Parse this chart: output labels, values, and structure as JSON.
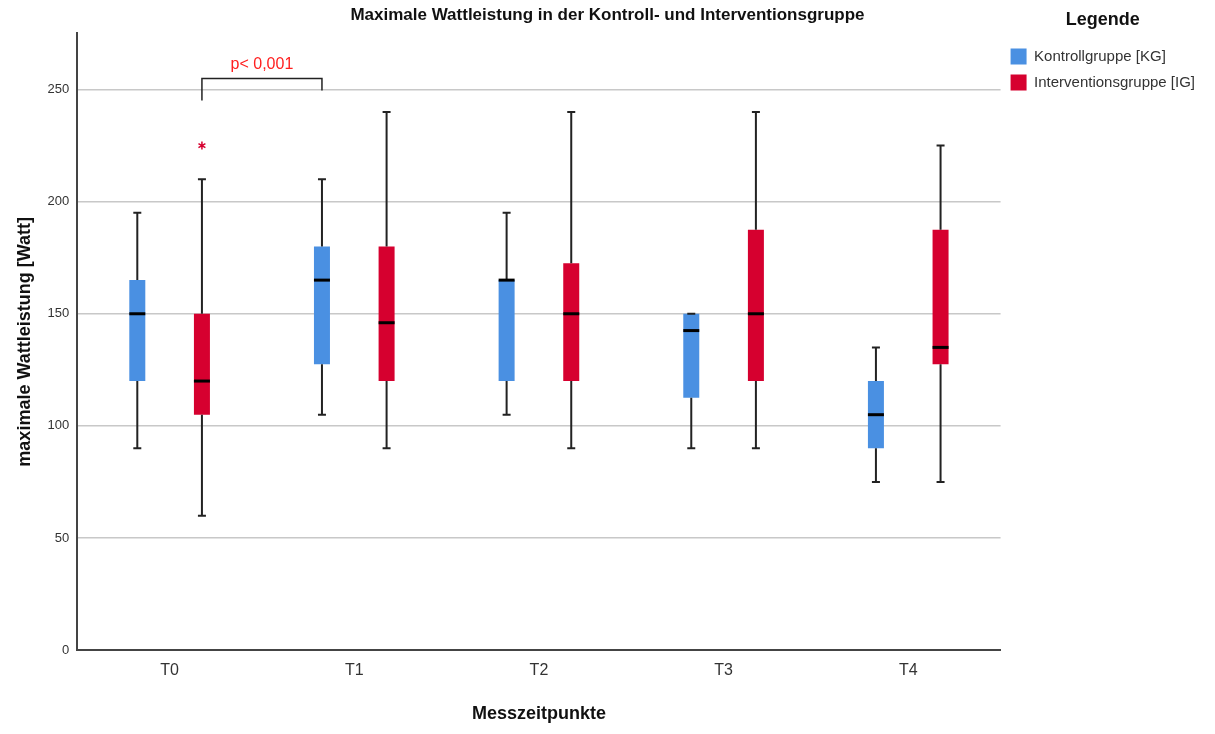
{
  "chart_data": {
    "type": "box",
    "title": "Maximale Wattleistung in der Kontroll- und Interventionsgruppe",
    "xlabel": "Messzeitpunkte",
    "ylabel": "maximale Wattleistung [Watt]",
    "legend_title": "Legende",
    "legend": "top right",
    "grid": "y",
    "categories": [
      "T0",
      "T1",
      "T2",
      "T3",
      "T4"
    ],
    "ylim": [
      0,
      275
    ],
    "yticks": [
      0,
      50,
      100,
      150,
      200,
      250
    ],
    "annotations": [
      "p< 0,001"
    ],
    "series": [
      {
        "name": "Kontrollgruppe [KG]",
        "color": "#4a90e2",
        "boxes": [
          {
            "low": 90,
            "q1": 120,
            "median": 150,
            "q3": 165,
            "high": 195
          },
          {
            "low": 105,
            "q1": 127.5,
            "median": 165,
            "q3": 180,
            "high": 210
          },
          {
            "low": 105,
            "q1": 120,
            "median": 165,
            "q3": 165,
            "high": 195
          },
          {
            "low": 90,
            "q1": 112.5,
            "median": 142.5,
            "q3": 150,
            "high": 150
          },
          {
            "low": 75,
            "q1": 90,
            "median": 105,
            "q3": 120,
            "high": 135
          }
        ]
      },
      {
        "name": "Interventionsgruppe [IG]",
        "color": "#d6002f",
        "boxes": [
          {
            "low": 60,
            "q1": 105,
            "median": 120,
            "q3": 150,
            "high": 210,
            "outliers": [
              225
            ]
          },
          {
            "low": 90,
            "q1": 120,
            "median": 146,
            "q3": 180,
            "high": 240
          },
          {
            "low": 90,
            "q1": 120,
            "median": 150,
            "q3": 172.5,
            "high": 240
          },
          {
            "low": 90,
            "q1": 120,
            "median": 150,
            "q3": 187.5,
            "high": 240
          },
          {
            "low": 75,
            "q1": 127.5,
            "median": 135,
            "q3": 187.5,
            "high": 225
          }
        ]
      }
    ]
  }
}
